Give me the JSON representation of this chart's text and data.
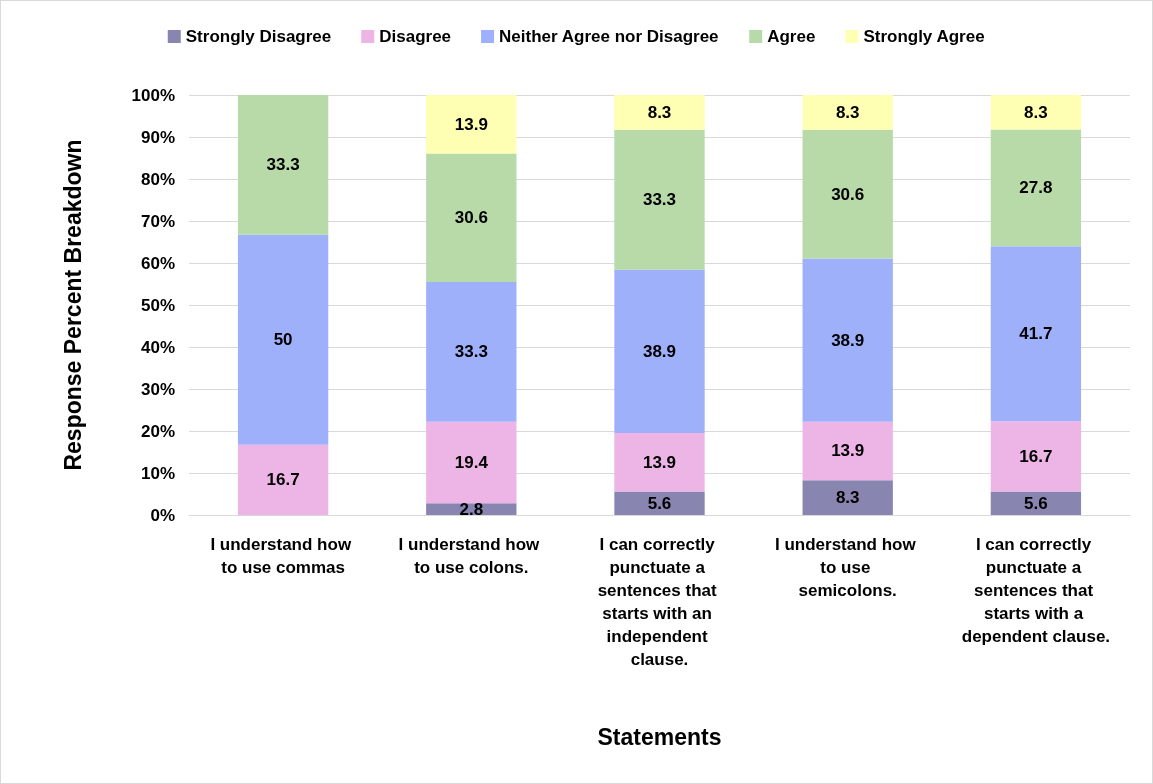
{
  "chart_data": {
    "type": "bar",
    "stacked": true,
    "xlabel": "Statements",
    "ylabel": "Response Percent Breakdown",
    "categories": [
      "I understand how to use commas",
      "I understand how to use colons.",
      "I can correctly punctuate a sentences that starts with an independent clause.",
      "I understand how to use semicolons.",
      "I can correctly punctuate a sentences that starts with a dependent clause."
    ],
    "series": [
      {
        "name": "Strongly Disagree",
        "color": "#8886b0",
        "values": [
          0,
          2.8,
          5.6,
          8.3,
          5.6
        ],
        "value_labels": [
          null,
          "2.8",
          "5.6",
          "8.3",
          "5.6"
        ]
      },
      {
        "name": "Disagree",
        "color": "#edb4e6",
        "values": [
          16.7,
          19.4,
          13.9,
          13.9,
          16.7
        ],
        "value_labels": [
          "16.7",
          "19.4",
          "13.9",
          "13.9",
          "16.7"
        ]
      },
      {
        "name": "Neither Agree nor Disagree",
        "color": "#9fb0fb",
        "values": [
          50,
          33.3,
          38.9,
          38.9,
          41.7
        ],
        "value_labels": [
          "50",
          "33.3",
          "38.9",
          "38.9",
          "41.7"
        ]
      },
      {
        "name": "Agree",
        "color": "#b7daa8",
        "values": [
          33.3,
          30.6,
          33.3,
          30.6,
          27.8
        ],
        "value_labels": [
          "33.3",
          "30.6",
          "33.3",
          "30.6",
          "27.8"
        ]
      },
      {
        "name": "Strongly Agree",
        "color": "#ffffb3",
        "values": [
          0,
          13.9,
          8.3,
          8.3,
          8.3
        ],
        "value_labels": [
          null,
          "13.9",
          "8.3",
          "8.3",
          "8.3"
        ]
      }
    ],
    "ylim": [
      0,
      100
    ],
    "yticks": [
      {
        "value": 0,
        "label": "0%"
      },
      {
        "value": 10,
        "label": "10%"
      },
      {
        "value": 20,
        "label": "20%"
      },
      {
        "value": 30,
        "label": "30%"
      },
      {
        "value": 40,
        "label": "40%"
      },
      {
        "value": 50,
        "label": "50%"
      },
      {
        "value": 60,
        "label": "60%"
      },
      {
        "value": 70,
        "label": "70%"
      },
      {
        "value": 80,
        "label": "80%"
      },
      {
        "value": 90,
        "label": "90%"
      },
      {
        "value": 100,
        "label": "100%"
      }
    ],
    "grid": "y",
    "legend": "top"
  }
}
